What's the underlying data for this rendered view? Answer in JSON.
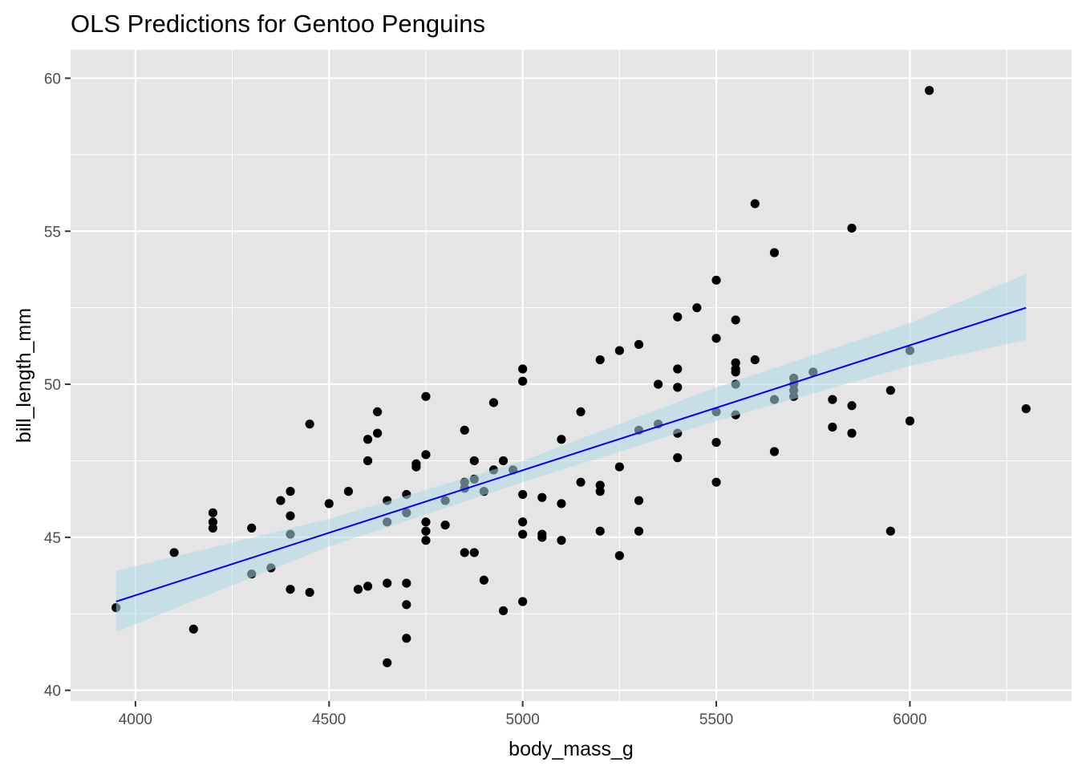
{
  "chart_data": {
    "type": "scatter",
    "title": "OLS Predictions for Gentoo Penguins",
    "xlabel": "body_mass_g",
    "ylabel": "bill_length_mm",
    "xlim": [
      3832.5,
      6417.5
    ],
    "ylim": [
      39.65,
      60.93
    ],
    "xticks": [
      4000,
      4500,
      5000,
      5500,
      6000
    ],
    "xtick_labels": [
      "4000",
      "4500",
      "5000",
      "5500",
      "6000"
    ],
    "yticks": [
      40,
      45,
      50,
      55,
      60
    ],
    "ytick_labels": [
      "40",
      "45",
      "50",
      "55",
      "60"
    ],
    "grid": true,
    "colors": {
      "panel_bg": "#e5e5e5",
      "grid": "#ffffff",
      "points": "#000000",
      "line": "#0000ff",
      "ribbon": "#add8e6"
    },
    "points": [
      [
        3950,
        42.7
      ],
      [
        4100,
        44.5
      ],
      [
        4150,
        42.0
      ],
      [
        4200,
        45.8
      ],
      [
        4200,
        45.5
      ],
      [
        4200,
        45.3
      ],
      [
        4300,
        45.3
      ],
      [
        4300,
        43.8
      ],
      [
        4350,
        44.0
      ],
      [
        4375,
        46.2
      ],
      [
        4400,
        46.5
      ],
      [
        4400,
        45.7
      ],
      [
        4400,
        45.1
      ],
      [
        4400,
        43.3
      ],
      [
        4450,
        48.7
      ],
      [
        4450,
        43.2
      ],
      [
        4500,
        46.1
      ],
      [
        4550,
        46.5
      ],
      [
        4575,
        43.3
      ],
      [
        4600,
        48.2
      ],
      [
        4600,
        47.5
      ],
      [
        4600,
        43.4
      ],
      [
        4625,
        49.1
      ],
      [
        4625,
        48.4
      ],
      [
        4650,
        46.2
      ],
      [
        4650,
        45.5
      ],
      [
        4650,
        43.5
      ],
      [
        4650,
        40.9
      ],
      [
        4700,
        46.4
      ],
      [
        4700,
        45.8
      ],
      [
        4700,
        43.5
      ],
      [
        4700,
        42.8
      ],
      [
        4700,
        41.7
      ],
      [
        4725,
        47.4
      ],
      [
        4725,
        47.3
      ],
      [
        4750,
        49.6
      ],
      [
        4750,
        47.7
      ],
      [
        4750,
        45.5
      ],
      [
        4750,
        45.2
      ],
      [
        4750,
        44.9
      ],
      [
        4800,
        46.2
      ],
      [
        4800,
        45.4
      ],
      [
        4850,
        48.5
      ],
      [
        4850,
        46.8
      ],
      [
        4850,
        46.6
      ],
      [
        4850,
        44.5
      ],
      [
        4875,
        47.5
      ],
      [
        4875,
        46.9
      ],
      [
        4875,
        44.5
      ],
      [
        4900,
        46.5
      ],
      [
        4900,
        43.6
      ],
      [
        4925,
        49.4
      ],
      [
        4925,
        47.2
      ],
      [
        4950,
        47.5
      ],
      [
        4950,
        42.6
      ],
      [
        4975,
        47.2
      ],
      [
        5000,
        50.5
      ],
      [
        5000,
        50.1
      ],
      [
        5000,
        46.4
      ],
      [
        5000,
        45.5
      ],
      [
        5000,
        45.1
      ],
      [
        5000,
        42.9
      ],
      [
        5050,
        46.3
      ],
      [
        5050,
        45.1
      ],
      [
        5050,
        45.0
      ],
      [
        5100,
        48.2
      ],
      [
        5100,
        46.1
      ],
      [
        5100,
        44.9
      ],
      [
        5150,
        49.1
      ],
      [
        5150,
        46.8
      ],
      [
        5200,
        50.8
      ],
      [
        5200,
        46.7
      ],
      [
        5200,
        46.5
      ],
      [
        5200,
        45.2
      ],
      [
        5250,
        51.1
      ],
      [
        5250,
        47.3
      ],
      [
        5250,
        44.4
      ],
      [
        5300,
        51.3
      ],
      [
        5300,
        48.5
      ],
      [
        5300,
        46.2
      ],
      [
        5300,
        45.2
      ],
      [
        5350,
        50.0
      ],
      [
        5350,
        48.7
      ],
      [
        5400,
        52.2
      ],
      [
        5400,
        50.5
      ],
      [
        5400,
        49.9
      ],
      [
        5400,
        48.4
      ],
      [
        5400,
        47.6
      ],
      [
        5450,
        52.5
      ],
      [
        5500,
        53.4
      ],
      [
        5500,
        51.5
      ],
      [
        5500,
        49.1
      ],
      [
        5500,
        48.1
      ],
      [
        5500,
        46.8
      ],
      [
        5550,
        52.1
      ],
      [
        5550,
        50.7
      ],
      [
        5550,
        50.5
      ],
      [
        5550,
        50.4
      ],
      [
        5550,
        50.0
      ],
      [
        5550,
        49.0
      ],
      [
        5600,
        55.9
      ],
      [
        5600,
        50.8
      ],
      [
        5650,
        54.3
      ],
      [
        5650,
        49.5
      ],
      [
        5650,
        47.8
      ],
      [
        5700,
        50.2
      ],
      [
        5700,
        50.0
      ],
      [
        5700,
        49.8
      ],
      [
        5700,
        49.6
      ],
      [
        5750,
        50.4
      ],
      [
        5800,
        49.5
      ],
      [
        5800,
        48.6
      ],
      [
        5850,
        55.1
      ],
      [
        5850,
        49.3
      ],
      [
        5850,
        48.4
      ],
      [
        5950,
        49.8
      ],
      [
        5950,
        45.2
      ],
      [
        6000,
        51.1
      ],
      [
        6000,
        48.8
      ],
      [
        6050,
        59.6
      ],
      [
        6300,
        49.2
      ]
    ],
    "fit_line": [
      [
        3950,
        42.9
      ],
      [
        6300,
        52.5
      ]
    ],
    "confidence_band": {
      "x": [
        3950,
        4500,
        5000,
        5500,
        6000,
        6300
      ],
      "lower": [
        41.9,
        44.7,
        46.8,
        48.8,
        50.6,
        51.45
      ],
      "upper": [
        43.9,
        45.6,
        47.5,
        49.9,
        52.0,
        53.6
      ]
    }
  }
}
